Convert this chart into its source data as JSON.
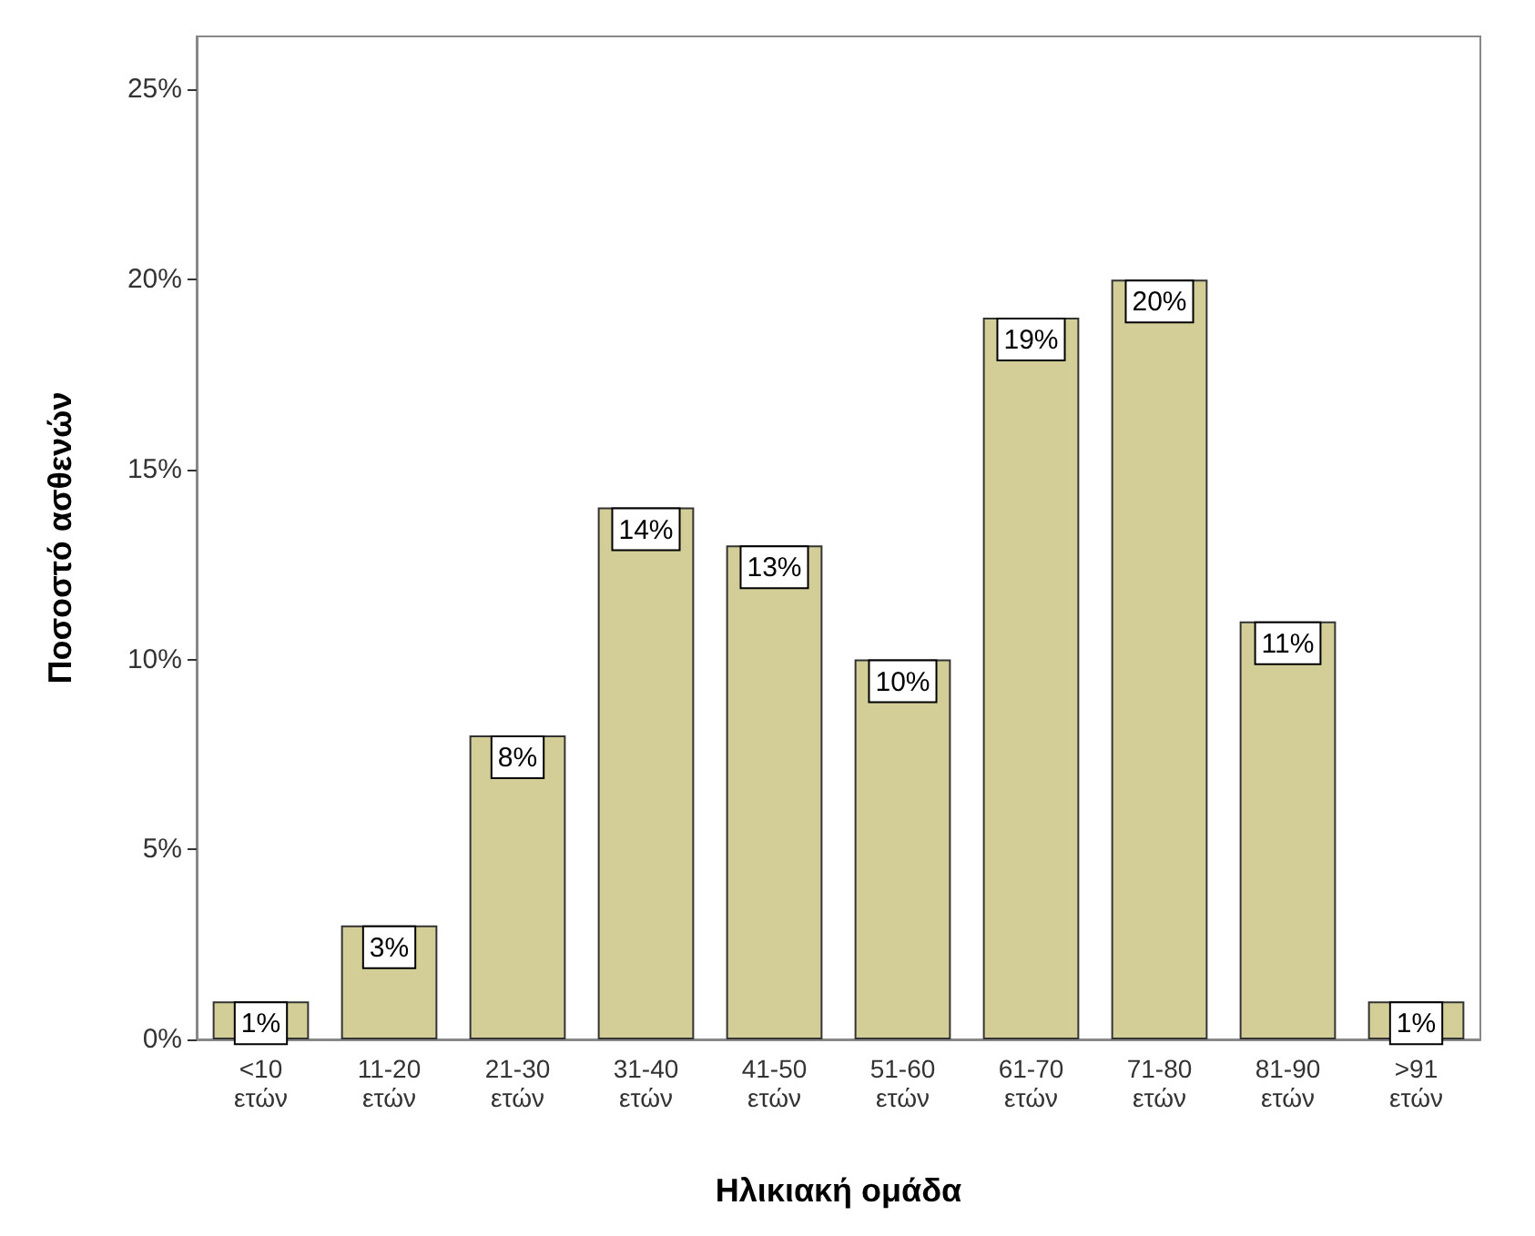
{
  "chart_data": {
    "type": "bar",
    "xlabel": "Ηλικιακή ομάδα",
    "ylabel": "Ποσοστό ασθενών",
    "categories": [
      "<10 ετών",
      "11-20 ετών",
      "21-30 ετών",
      "31-40 ετών",
      "41-50 ετών",
      "51-60 ετών",
      "61-70 ετών",
      "71-80 ετών",
      "81-90 ετών",
      ">91 ετών"
    ],
    "values": [
      1,
      3,
      8,
      14,
      13,
      10,
      19,
      20,
      11,
      1
    ],
    "value_labels": [
      "1%",
      "3%",
      "8%",
      "14%",
      "13%",
      "10%",
      "19%",
      "20%",
      "11%",
      "1%"
    ],
    "color": "#d3ce97",
    "ylim": [
      0,
      26.4
    ],
    "yticks": [
      {
        "value": 0,
        "label": "0%"
      },
      {
        "value": 5,
        "label": "5%"
      },
      {
        "value": 10,
        "label": "10%"
      },
      {
        "value": 15,
        "label": "15%"
      },
      {
        "value": 20,
        "label": "20%"
      },
      {
        "value": 25,
        "label": "25%"
      }
    ],
    "grid": false
  }
}
